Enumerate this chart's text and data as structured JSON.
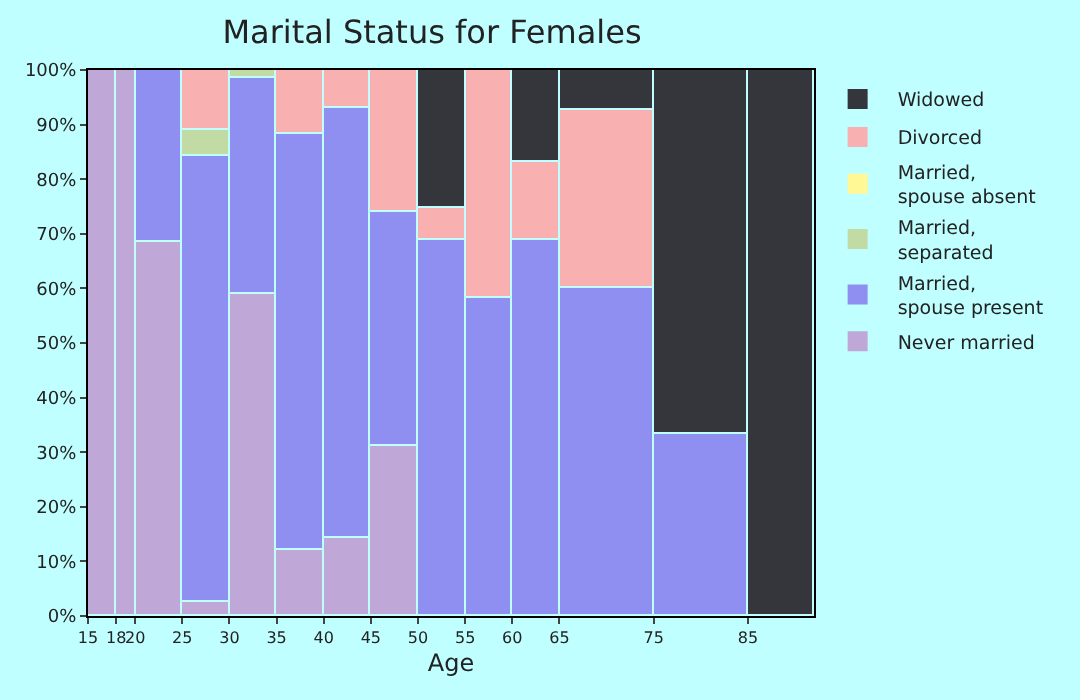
{
  "chart_data": {
    "type": "bar",
    "stacked": true,
    "title": "Marital Status for Females",
    "xlabel": "Age",
    "x": [
      16.5,
      19,
      22.5,
      27.5,
      32.5,
      37.5,
      42.5,
      47.5,
      52.5,
      57.5,
      62.5,
      70,
      80,
      88.5
    ],
    "xlim": [
      15,
      92
    ],
    "xticks": [
      15,
      18,
      20,
      25,
      30,
      35,
      40,
      45,
      50,
      55,
      60,
      65,
      75,
      85
    ],
    "ylim": [
      0,
      100
    ],
    "yticks": [
      {
        "value": 0,
        "label": "0%"
      },
      {
        "value": 10,
        "label": "10%"
      },
      {
        "value": 20,
        "label": "20%"
      },
      {
        "value": 30,
        "label": "30%"
      },
      {
        "value": 40,
        "label": "40%"
      },
      {
        "value": 50,
        "label": "50%"
      },
      {
        "value": 60,
        "label": "60%"
      },
      {
        "value": 70,
        "label": "70%"
      },
      {
        "value": 80,
        "label": "80%"
      },
      {
        "value": 90,
        "label": "90%"
      },
      {
        "value": 100,
        "label": "100%"
      }
    ],
    "legend": "right",
    "series": [
      {
        "name": "Never married",
        "color": "#bfa7d8",
        "values": [
          100,
          100,
          68.6,
          2.4,
          59.0,
          12.1,
          14.3,
          31.2,
          0,
          0,
          0,
          0,
          0,
          0
        ]
      },
      {
        "name": "Married, spouse present",
        "color": "#8f8ff2",
        "values": [
          0,
          0,
          31.4,
          82.0,
          39.4,
          76.3,
          78.9,
          42.9,
          68.9,
          58.3,
          68.9,
          60.1,
          33.4,
          0
        ]
      },
      {
        "name": "Married, separated",
        "color": "#c2dba4",
        "values": [
          0,
          0,
          0,
          4.5,
          1.6,
          0,
          0,
          0,
          0,
          0,
          0,
          0,
          0,
          0
        ]
      },
      {
        "name": "Married, spouse absent",
        "color": "#fff894",
        "values": [
          0,
          0,
          0,
          0,
          0,
          0,
          0,
          0,
          0,
          0,
          0,
          0,
          0,
          0
        ]
      },
      {
        "name": "Divorced",
        "color": "#f8b0b0",
        "values": [
          0,
          0,
          0,
          11.1,
          0,
          11.6,
          6.8,
          25.9,
          5.9,
          41.7,
          14.4,
          32.7,
          0,
          0
        ]
      },
      {
        "name": "Widowed",
        "color": "#35363b",
        "values": [
          0,
          0,
          0,
          0,
          0,
          0,
          0,
          0,
          25.2,
          0,
          16.7,
          7.2,
          66.6,
          100
        ]
      }
    ]
  }
}
